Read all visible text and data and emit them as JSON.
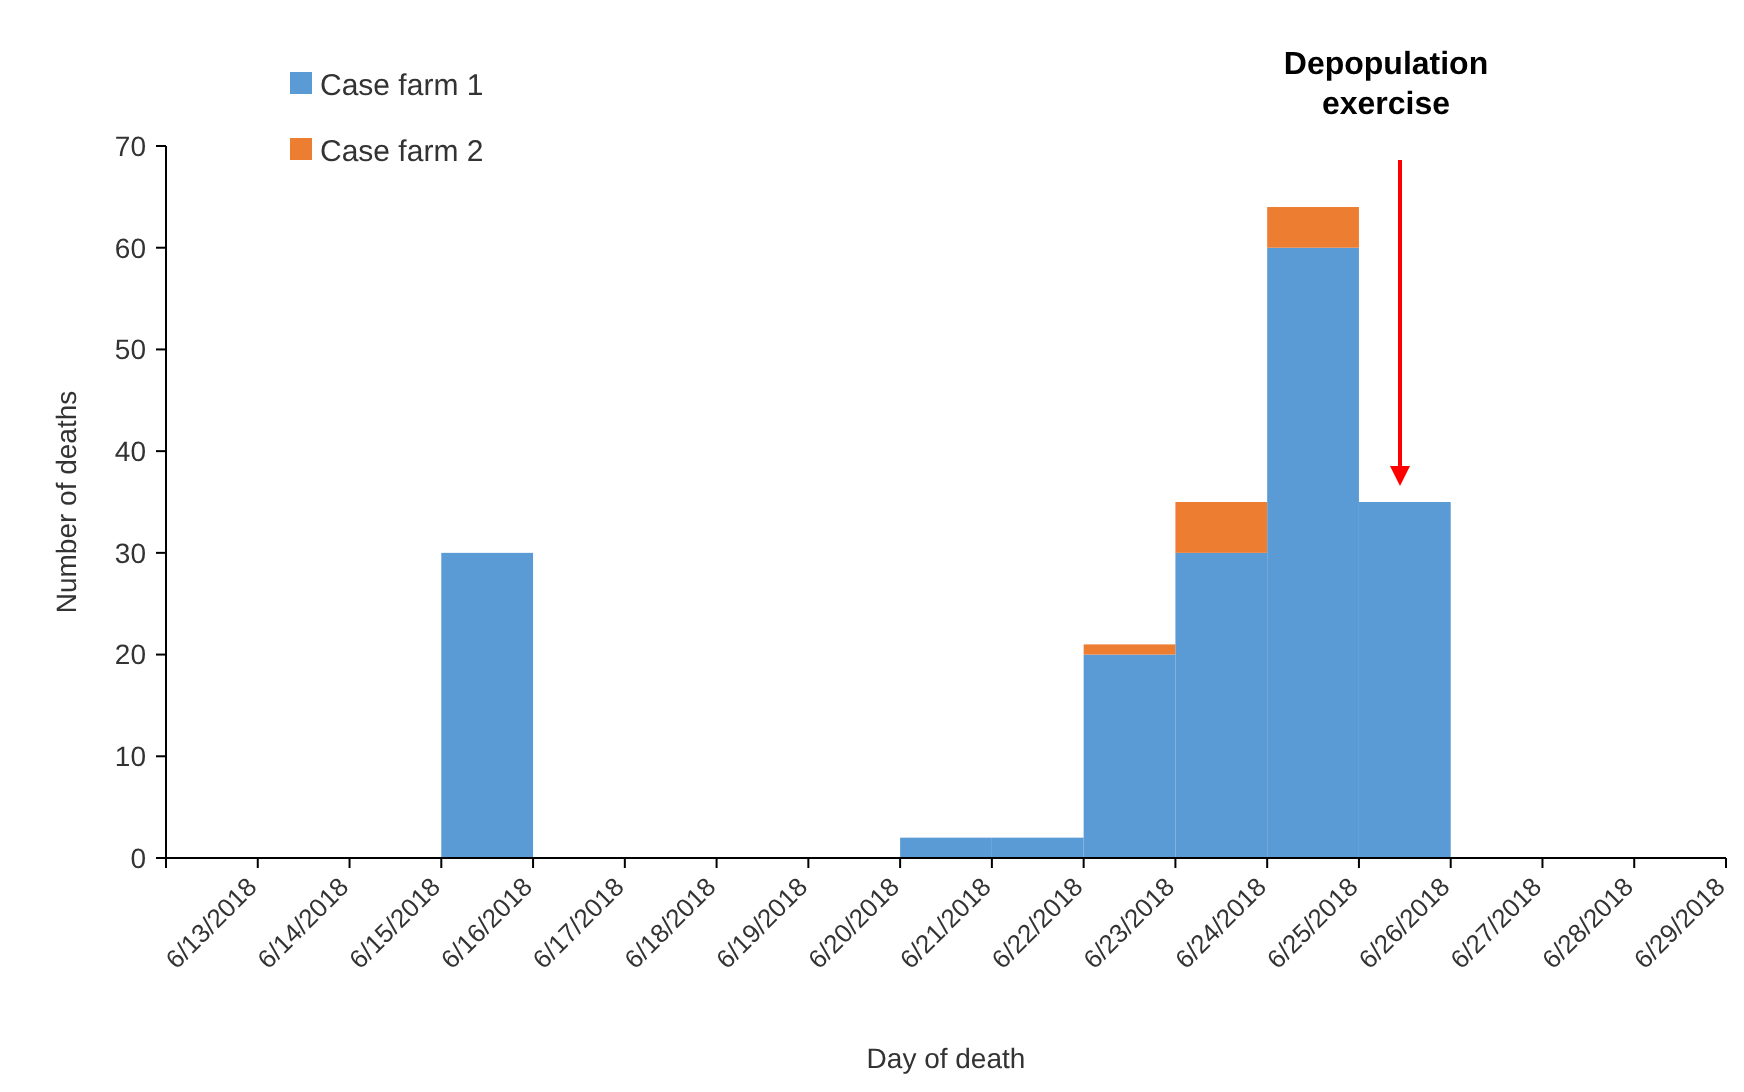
{
  "chart_data": {
    "type": "bar",
    "stacked": true,
    "xlabel": "Day of death",
    "ylabel": "Number of deaths",
    "categories": [
      "6/13/2018",
      "6/14/2018",
      "6/15/2018",
      "6/16/2018",
      "6/17/2018",
      "6/18/2018",
      "6/19/2018",
      "6/20/2018",
      "6/21/2018",
      "6/22/2018",
      "6/23/2018",
      "6/24/2018",
      "6/25/2018",
      "6/26/2018",
      "6/27/2018",
      "6/28/2018",
      "6/29/2018"
    ],
    "series": [
      {
        "name": "Case farm 1",
        "color": "#5b9bd5",
        "values": [
          0,
          0,
          0,
          30,
          0,
          0,
          0,
          0,
          2,
          2,
          20,
          30,
          60,
          35,
          0,
          0,
          0
        ]
      },
      {
        "name": "Case farm 2",
        "color": "#ed7d31",
        "values": [
          0,
          0,
          0,
          0,
          0,
          0,
          0,
          0,
          0,
          0,
          1,
          5,
          4,
          0,
          0,
          0,
          0
        ]
      }
    ],
    "ylim": [
      0,
      70
    ],
    "yticks": [
      0,
      10,
      20,
      30,
      40,
      50,
      60,
      70
    ],
    "grid": false,
    "legend": "top left",
    "annotations": [
      "Depopulation exercise"
    ]
  }
}
